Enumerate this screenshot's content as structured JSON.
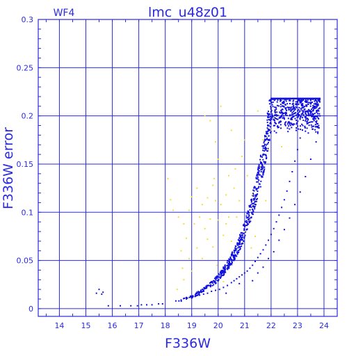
{
  "chart_data": {
    "type": "scatter",
    "title": "lmc_u48z01",
    "panel_label": "WF4",
    "xlabel": "F336W",
    "ylabel": "F336W error",
    "xlim": [
      13.2,
      24.5
    ],
    "ylim": [
      -0.008,
      0.3
    ],
    "xticks": [
      14,
      15,
      16,
      17,
      18,
      19,
      20,
      21,
      22,
      23,
      24
    ],
    "yticks": [
      0,
      0.05,
      0.1,
      0.15,
      0.2,
      0.25,
      0.3
    ],
    "ytick_labels": [
      "0",
      "0.05",
      "0.1",
      "0.15",
      "0.2",
      "0.25",
      "0.3"
    ],
    "grid": true,
    "colors": {
      "axis": "#2a2adf",
      "grid": "#2a2adf",
      "main_series": "#1111dd",
      "outliers": "#f0e030"
    },
    "series": [
      {
        "color": "#1111dd",
        "points": [
          [
            15.4,
            0.016
          ],
          [
            15.5,
            0.02
          ],
          [
            15.6,
            0.015
          ],
          [
            15.65,
            0.017
          ],
          [
            15.85,
            0.003
          ],
          [
            16.3,
            0.003
          ],
          [
            16.7,
            0.003
          ],
          [
            16.95,
            0.003
          ],
          [
            17.1,
            0.004
          ],
          [
            17.3,
            0.004
          ],
          [
            17.5,
            0.004
          ],
          [
            17.75,
            0.005
          ],
          [
            17.9,
            0.005
          ],
          [
            18.4,
            0.008
          ],
          [
            18.6,
            0.009
          ],
          [
            18.8,
            0.01
          ],
          [
            19.0,
            0.011
          ],
          [
            19.15,
            0.013
          ],
          [
            19.3,
            0.014
          ],
          [
            19.45,
            0.015
          ],
          [
            19.6,
            0.016
          ],
          [
            19.75,
            0.018
          ],
          [
            19.9,
            0.019
          ],
          [
            20.05,
            0.02
          ],
          [
            20.2,
            0.022
          ],
          [
            20.35,
            0.024
          ],
          [
            20.5,
            0.027
          ],
          [
            20.6,
            0.029
          ],
          [
            20.7,
            0.031
          ],
          [
            20.8,
            0.033
          ],
          [
            20.9,
            0.035
          ],
          [
            21.0,
            0.037
          ],
          [
            21.1,
            0.039
          ],
          [
            21.2,
            0.042
          ],
          [
            21.3,
            0.045
          ],
          [
            21.4,
            0.049
          ],
          [
            21.5,
            0.053
          ],
          [
            21.6,
            0.057
          ],
          [
            21.7,
            0.061
          ],
          [
            21.8,
            0.066
          ],
          [
            21.9,
            0.071
          ],
          [
            22.0,
            0.077
          ],
          [
            22.1,
            0.083
          ],
          [
            22.2,
            0.09
          ],
          [
            22.3,
            0.097
          ],
          [
            22.4,
            0.105
          ],
          [
            22.5,
            0.113
          ],
          [
            22.6,
            0.122
          ],
          [
            22.7,
            0.132
          ],
          [
            22.8,
            0.142
          ],
          [
            22.9,
            0.153
          ],
          [
            23.0,
            0.165
          ],
          [
            23.1,
            0.177
          ],
          [
            23.2,
            0.19
          ],
          [
            23.3,
            0.202
          ],
          [
            23.4,
            0.212
          ],
          [
            23.5,
            0.216
          ],
          [
            23.6,
            0.21
          ],
          [
            23.7,
            0.2
          ],
          [
            19.2,
            0.017
          ],
          [
            20.3,
            0.016
          ],
          [
            20.8,
            0.026
          ],
          [
            21.3,
            0.029
          ],
          [
            21.5,
            0.037
          ],
          [
            21.7,
            0.043
          ],
          [
            21.9,
            0.052
          ],
          [
            22.1,
            0.059
          ],
          [
            22.3,
            0.071
          ],
          [
            22.5,
            0.082
          ],
          [
            22.7,
            0.094
          ],
          [
            22.9,
            0.108
          ],
          [
            23.1,
            0.121
          ],
          [
            23.3,
            0.137
          ],
          [
            23.5,
            0.155
          ],
          [
            23.7,
            0.173
          ],
          [
            23.8,
            0.19
          ],
          [
            23.8,
            0.205
          ]
        ],
        "band": {
          "xmin": 18.4,
          "xmax": 23.85,
          "base_y_at_xmin": 0.007,
          "base_growth_per_mag": 0.93,
          "y_cap": 0.218,
          "relative_spread": 0.12,
          "count": 1400
        }
      },
      {
        "color": "#f0e030",
        "points": [
          [
            18.1,
            0.135
          ],
          [
            18.2,
            0.113
          ],
          [
            18.3,
            0.102
          ],
          [
            18.5,
            0.095
          ],
          [
            18.6,
            0.06
          ],
          [
            18.65,
            0.042
          ],
          [
            18.7,
            0.03
          ],
          [
            18.7,
            0.088
          ],
          [
            18.8,
            0.073
          ],
          [
            18.9,
            0.102
          ],
          [
            18.9,
            0.052
          ],
          [
            19.0,
            0.116
          ],
          [
            19.0,
            0.039
          ],
          [
            19.1,
            0.088
          ],
          [
            19.2,
            0.125
          ],
          [
            19.2,
            0.063
          ],
          [
            19.3,
            0.095
          ],
          [
            19.4,
            0.108
          ],
          [
            19.4,
            0.052
          ],
          [
            19.5,
            0.2
          ],
          [
            19.5,
            0.083
          ],
          [
            19.6,
            0.115
          ],
          [
            19.6,
            0.072
          ],
          [
            19.7,
            0.093
          ],
          [
            19.7,
            0.195
          ],
          [
            19.8,
            0.128
          ],
          [
            19.8,
            0.064
          ],
          [
            19.9,
            0.173
          ],
          [
            19.9,
            0.112
          ],
          [
            19.95,
            0.045
          ],
          [
            20.0,
            0.092
          ],
          [
            20.0,
            0.155
          ],
          [
            20.1,
            0.108
          ],
          [
            20.1,
            0.21
          ],
          [
            20.2,
            0.076
          ],
          [
            20.3,
            0.118
          ],
          [
            20.3,
            0.088
          ],
          [
            20.4,
            0.138
          ],
          [
            20.4,
            0.095
          ],
          [
            20.5,
            0.185
          ],
          [
            20.5,
            0.07
          ],
          [
            20.6,
            0.125
          ],
          [
            20.7,
            0.095
          ],
          [
            20.8,
            0.112
          ],
          [
            20.9,
            0.158
          ],
          [
            21.0,
            0.175
          ],
          [
            21.0,
            0.08
          ],
          [
            21.1,
            0.138
          ],
          [
            21.2,
            0.092
          ],
          [
            21.3,
            0.118
          ],
          [
            21.4,
            0.075
          ],
          [
            21.5,
            0.205
          ],
          [
            21.6,
            0.148
          ],
          [
            21.7,
            0.175
          ],
          [
            21.8,
            0.112
          ],
          [
            21.9,
            0.165
          ],
          [
            22.0,
            0.185
          ],
          [
            22.1,
            0.198
          ],
          [
            22.2,
            0.205
          ],
          [
            22.4,
            0.168
          ],
          [
            20.2,
            0.028
          ],
          [
            18.45,
            0.02
          ],
          [
            19.85,
            0.135
          ],
          [
            20.65,
            0.145
          ],
          [
            21.25,
            0.063
          ]
        ]
      }
    ]
  }
}
